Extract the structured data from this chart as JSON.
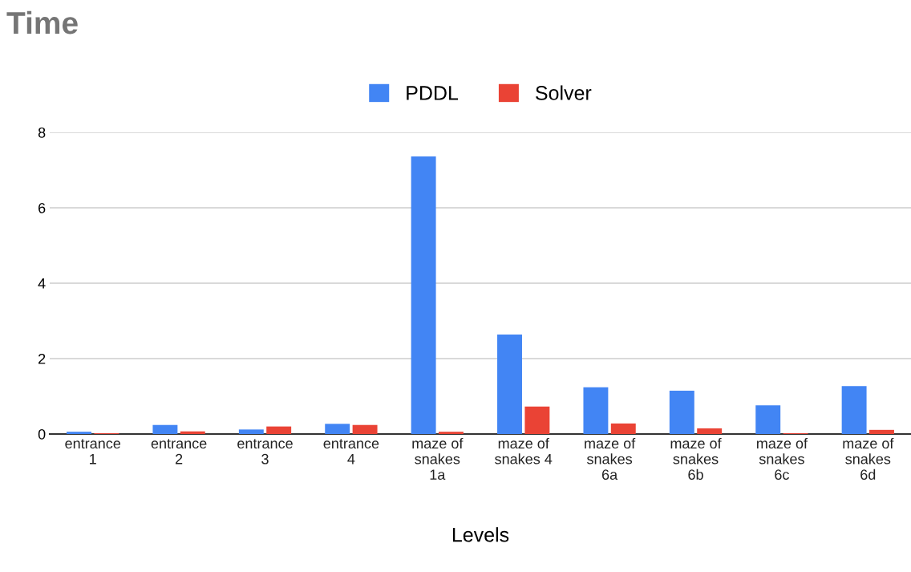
{
  "chart_data": {
    "type": "bar",
    "title": "Time",
    "xlabel": "Levels",
    "categories": [
      "entrance\n1",
      "entrance\n2",
      "entrance\n3",
      "entrance\n4",
      "maze of\nsnakes\n1a",
      "maze of\nsnakes 4",
      "maze of\nsnakes\n6a",
      "maze of\nsnakes\n6b",
      "maze of\nsnakes\n6c",
      "maze of\nsnakes\n6d"
    ],
    "series": [
      {
        "name": "PDDL",
        "color": "#4285f4",
        "values": [
          0.06,
          0.24,
          0.12,
          0.27,
          7.36,
          2.64,
          1.24,
          1.15,
          0.76,
          1.27
        ]
      },
      {
        "name": "Solver",
        "color": "#ea4335",
        "values": [
          0.02,
          0.07,
          0.2,
          0.24,
          0.06,
          0.73,
          0.28,
          0.15,
          0.02,
          0.11
        ]
      }
    ],
    "ylim": [
      0,
      8
    ],
    "yticks": [
      0,
      2,
      4,
      6,
      8
    ],
    "grid": "y",
    "legend": "top"
  }
}
